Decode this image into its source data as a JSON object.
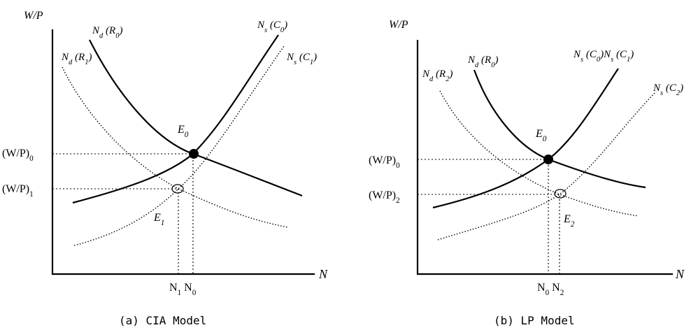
{
  "panels": [
    {
      "caption": "(a) CIA Model",
      "y_axis_label": "W/P",
      "x_axis_label": "N",
      "demand_base_label": "N_d (R_0)",
      "demand_shift_label": "N_d (R_1)",
      "supply_base_label": "N_s (C_0)",
      "supply_shift_label": "N_s (C_1)",
      "eq_base_label": "E_0",
      "eq_shift_label": "E_1",
      "wage_base_label": "(W/P)_0",
      "wage_shift_label": "(W/P)_1",
      "emp_labels": "N_1 N_0"
    },
    {
      "caption": "(b) LP Model",
      "y_axis_label": "W/P",
      "x_axis_label": "N",
      "demand_base_label": "N_d (R_0)",
      "demand_shift_label": "N_d (R_2)",
      "supply_base_label": "N_s (C_0)N_s (C_1)",
      "supply_shift_label": "N_s (C_2)",
      "eq_base_label": "E_0",
      "eq_shift_label": "E_2",
      "wage_base_label": "(W/P)_0",
      "wage_shift_label": "(W/P)_2",
      "emp_labels": "N_0 N_2"
    }
  ]
}
